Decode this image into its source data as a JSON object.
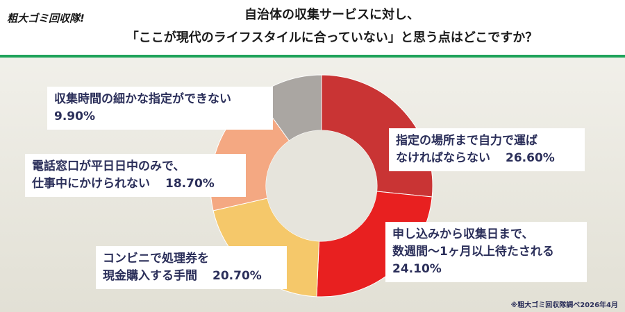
{
  "logo": "粗大ゴミ回収隊!",
  "source": "※粗大ゴミ回収隊調べ2026年4月",
  "chart_data": {
    "type": "donut",
    "title": [
      "自治体の収集サービスに対し、",
      "「ここが現代のライフスタイルに合っていない」と思う点はどこですか？"
    ],
    "categories": [
      [
        "指定の場所まで自力で運ば",
        "なければならない"
      ],
      [
        "申し込みから収集日まで、",
        "数週間〜1ヶ月以上待たされる"
      ],
      [
        "コンビニで処理券を",
        "現金購入する手間"
      ],
      [
        "電話窓口が平日日中のみで、",
        "仕事中にかけられない"
      ],
      [
        "収集時間の細かな指定ができない"
      ]
    ],
    "values": [
      26.6,
      24.1,
      20.7,
      18.7,
      9.9
    ],
    "value_labels": [
      "26.60%",
      "24.10%",
      "20.70%",
      "18.70%",
      "9.90%"
    ],
    "colors": [
      "#c93434",
      "#e82020",
      "#f5c86a",
      "#f4a882",
      "#aaa6a2"
    ]
  }
}
